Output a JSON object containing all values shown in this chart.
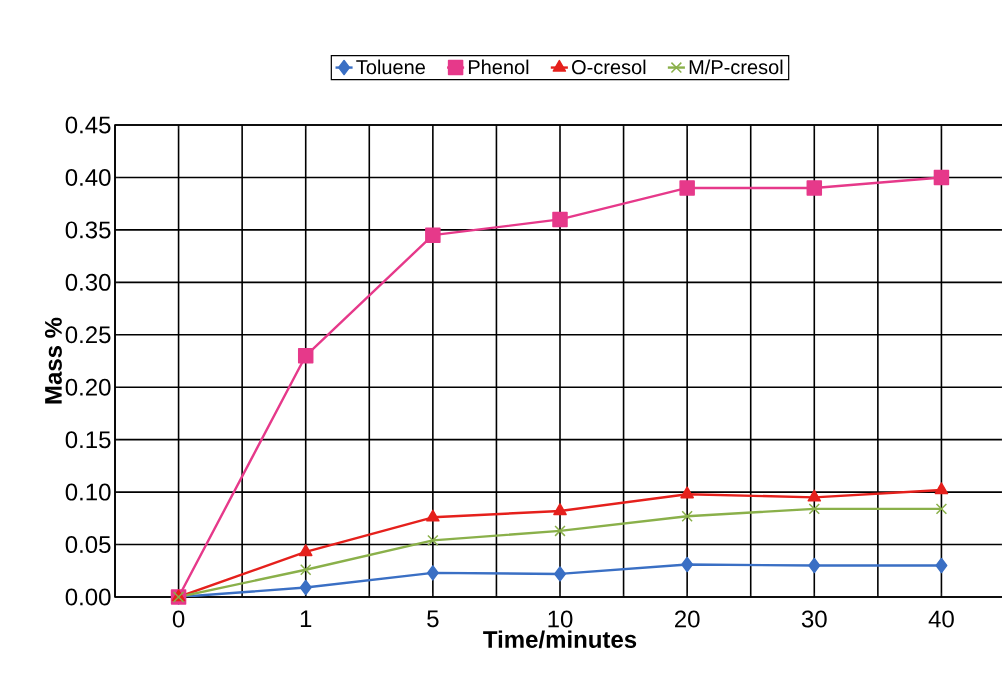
{
  "chart_data": {
    "type": "line",
    "xlabel": "Time/minutes",
    "ylabel": "Mass %",
    "categories": [
      "0",
      "1",
      "5",
      "10",
      "20",
      "30",
      "40"
    ],
    "ylim": [
      0,
      0.45
    ],
    "yticks": [
      {
        "value": 0,
        "label": "0.00"
      },
      {
        "value": 0.05,
        "label": "0.05"
      },
      {
        "value": 0.1,
        "label": "0.10"
      },
      {
        "value": 0.15,
        "label": "0.15"
      },
      {
        "value": 0.2,
        "label": "0.20"
      },
      {
        "value": 0.25,
        "label": "0.25"
      },
      {
        "value": 0.3,
        "label": "0.30"
      },
      {
        "value": 0.35,
        "label": "0.35"
      },
      {
        "value": 0.4,
        "label": "0.40"
      },
      {
        "value": 0.45,
        "label": "0.45"
      }
    ],
    "grid": true,
    "legend": "top",
    "line_style": "solid",
    "series": [
      {
        "name": "Toluene",
        "color": "#3a6fc4",
        "marker": "diamond",
        "values": [
          0,
          0.009,
          0.023,
          0.022,
          0.031,
          0.03,
          0.03
        ]
      },
      {
        "name": "Phenol",
        "color": "#e6398a",
        "marker": "square",
        "values": [
          0,
          0.23,
          0.345,
          0.36,
          0.39,
          0.39,
          0.4
        ]
      },
      {
        "name": "O-cresol",
        "color": "#e5201c",
        "marker": "triangle",
        "values": [
          0,
          0.043,
          0.076,
          0.082,
          0.098,
          0.095,
          0.102
        ]
      },
      {
        "name": "M/P-cresol",
        "color": "#8ab04a",
        "marker": "cross",
        "values": [
          0,
          0.026,
          0.054,
          0.063,
          0.077,
          0.084,
          0.084
        ]
      }
    ]
  }
}
